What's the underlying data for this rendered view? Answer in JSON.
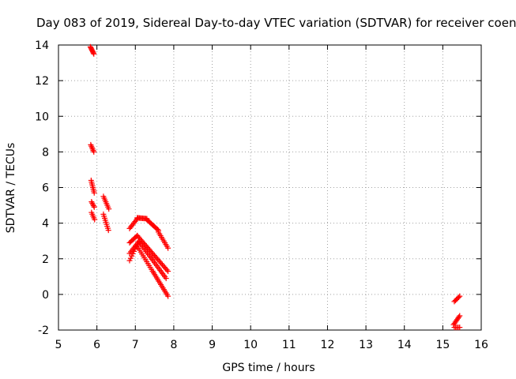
{
  "chart_data": {
    "type": "scatter",
    "title": "Day 083 of 2019, Sidereal Day-to-day VTEC variation (SDTVAR) for receiver coen",
    "xlabel": "GPS time / hours",
    "ylabel": "SDTVAR / TECUs",
    "xlim": [
      5,
      16
    ],
    "ylim": [
      -2,
      14
    ],
    "xticks": [
      5,
      6,
      7,
      8,
      9,
      10,
      11,
      12,
      13,
      14,
      15,
      16
    ],
    "yticks": [
      -2,
      0,
      2,
      4,
      6,
      8,
      10,
      12,
      14
    ],
    "grid": true,
    "marker": "+",
    "color": "#ff0000",
    "segments": [
      {
        "x0": 5.83,
        "x1": 5.92,
        "y0": 13.9,
        "y1": 13.5,
        "n": 8
      },
      {
        "x0": 5.84,
        "x1": 5.92,
        "y0": 8.4,
        "y1": 8.0,
        "n": 6
      },
      {
        "x0": 5.85,
        "x1": 5.93,
        "y0": 6.4,
        "y1": 5.7,
        "n": 8
      },
      {
        "x0": 5.86,
        "x1": 5.93,
        "y0": 5.2,
        "y1": 4.9,
        "n": 5
      },
      {
        "x0": 5.86,
        "x1": 5.94,
        "y0": 4.6,
        "y1": 4.2,
        "n": 5
      },
      {
        "x0": 6.17,
        "x1": 6.31,
        "y0": 5.5,
        "y1": 4.8,
        "n": 8
      },
      {
        "x0": 6.17,
        "x1": 6.3,
        "y0": 4.5,
        "y1": 3.6,
        "n": 9
      },
      {
        "x0": 6.85,
        "x1": 7.05,
        "y0": 3.7,
        "y1": 4.25,
        "n": 8
      },
      {
        "x0": 7.05,
        "x1": 7.3,
        "y0": 4.3,
        "y1": 4.25,
        "n": 10
      },
      {
        "x0": 7.3,
        "x1": 7.6,
        "y0": 4.2,
        "y1": 3.6,
        "n": 12
      },
      {
        "x0": 7.6,
        "x1": 7.85,
        "y0": 3.5,
        "y1": 2.6,
        "n": 10
      },
      {
        "x0": 6.85,
        "x1": 7.05,
        "y0": 2.9,
        "y1": 3.3,
        "n": 8
      },
      {
        "x0": 7.05,
        "x1": 7.85,
        "y0": 3.3,
        "y1": 1.3,
        "n": 28
      },
      {
        "x0": 6.85,
        "x1": 7.1,
        "y0": 2.3,
        "y1": 3.0,
        "n": 9
      },
      {
        "x0": 7.1,
        "x1": 7.8,
        "y0": 2.95,
        "y1": 0.9,
        "n": 24
      },
      {
        "x0": 6.85,
        "x1": 7.05,
        "y0": 1.9,
        "y1": 2.8,
        "n": 8
      },
      {
        "x0": 7.05,
        "x1": 7.45,
        "y0": 2.7,
        "y1": 1.3,
        "n": 14
      },
      {
        "x0": 7.45,
        "x1": 7.85,
        "y0": 1.3,
        "y1": -0.1,
        "n": 16
      },
      {
        "x0": 15.3,
        "x1": 15.44,
        "y0": -0.4,
        "y1": -0.1,
        "n": 6
      },
      {
        "x0": 15.28,
        "x1": 15.44,
        "y0": -1.7,
        "y1": -1.2,
        "n": 8
      },
      {
        "x0": 15.3,
        "x1": 15.44,
        "y0": -1.85,
        "y1": -1.85,
        "n": 5
      }
    ]
  }
}
